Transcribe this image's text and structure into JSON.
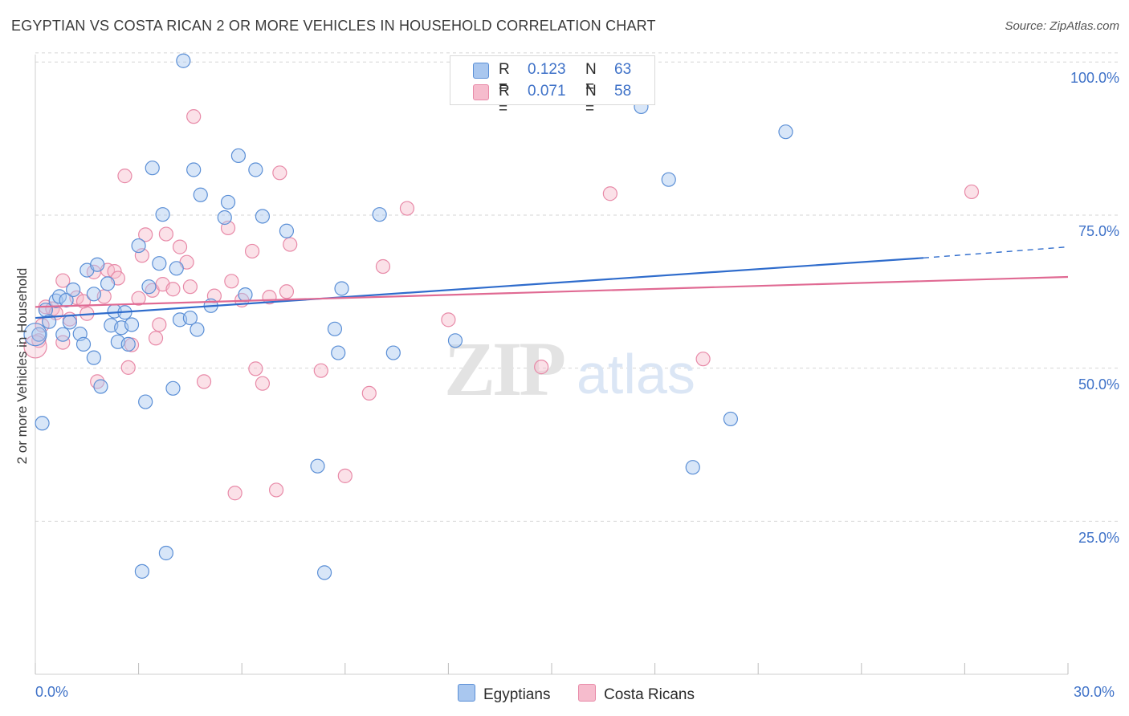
{
  "title": "EGYPTIAN VS COSTA RICAN 2 OR MORE VEHICLES IN HOUSEHOLD CORRELATION CHART",
  "source": "Source: ZipAtlas.com",
  "watermark": "ZIPatlas",
  "colors": {
    "egyptians_fill": "#a9c7ef",
    "egyptians_stroke": "#5b8fd6",
    "egyptians_line": "#2f6ccc",
    "costa_fill": "#f6bccd",
    "costa_stroke": "#e88aa8",
    "costa_line": "#e06a93",
    "tick_text": "#3f72c8",
    "grid": "#d6d6d6"
  },
  "legend_top": {
    "rows": [
      {
        "r_label": "R =",
        "r_value": "0.123",
        "n_label": "N =",
        "n_value": "63",
        "series": "egyptians"
      },
      {
        "r_label": "R =",
        "r_value": "0.071",
        "n_label": "N =",
        "n_value": "58",
        "series": "costa"
      }
    ]
  },
  "legend_bottom": [
    "Egyptians",
    "Costa Ricans"
  ],
  "chart_data": {
    "type": "scatter",
    "title": "EGYPTIAN VS COSTA RICAN 2 OR MORE VEHICLES IN HOUSEHOLD CORRELATION CHART",
    "xlabel": "",
    "ylabel": "2 or more Vehicles in Household",
    "xlim": [
      0,
      30
    ],
    "ylim": [
      0,
      102
    ],
    "x_tick_labels": [
      "0.0%",
      "30.0%"
    ],
    "y_ticks": [
      25,
      50,
      75,
      100
    ],
    "y_tick_labels": [
      "25.0%",
      "50.0%",
      "75.0%",
      "100.0%"
    ],
    "grid": "horizontal dashed",
    "legend": "top-center and bottom",
    "series": [
      {
        "name": "Egyptians",
        "r": 0.123,
        "n": 63,
        "trend": {
          "x": [
            0,
            25.8
          ],
          "y": [
            58.2,
            68.0
          ],
          "dashed_to": [
            30,
            69.8
          ]
        },
        "points": [
          [
            0.1,
            55.5
          ],
          [
            0.3,
            59.5
          ],
          [
            0.4,
            57.6
          ],
          [
            0.6,
            61.0
          ],
          [
            0.7,
            61.7
          ],
          [
            0.8,
            55.5
          ],
          [
            0.9,
            61.1
          ],
          [
            1.0,
            57.5
          ],
          [
            1.1,
            62.8
          ],
          [
            1.3,
            55.6
          ],
          [
            1.4,
            53.9
          ],
          [
            1.5,
            66.0
          ],
          [
            1.7,
            62.1
          ],
          [
            1.7,
            51.7
          ],
          [
            1.8,
            66.9
          ],
          [
            1.9,
            47.0
          ],
          [
            2.1,
            63.8
          ],
          [
            2.2,
            57.0
          ],
          [
            2.3,
            59.3
          ],
          [
            2.4,
            54.3
          ],
          [
            2.5,
            56.6
          ],
          [
            2.6,
            59.1
          ],
          [
            2.7,
            53.9
          ],
          [
            2.8,
            57.1
          ],
          [
            3.0,
            70.0
          ],
          [
            3.1,
            16.8
          ],
          [
            3.2,
            44.5
          ],
          [
            3.3,
            63.3
          ],
          [
            3.4,
            82.7
          ],
          [
            3.6,
            67.1
          ],
          [
            3.7,
            75.1
          ],
          [
            3.8,
            19.8
          ],
          [
            4.0,
            46.7
          ],
          [
            4.1,
            66.3
          ],
          [
            4.2,
            57.9
          ],
          [
            4.3,
            100.2
          ],
          [
            4.5,
            58.2
          ],
          [
            4.6,
            82.4
          ],
          [
            4.7,
            56.3
          ],
          [
            4.8,
            78.3
          ],
          [
            5.1,
            60.2
          ],
          [
            5.5,
            74.6
          ],
          [
            5.6,
            77.1
          ],
          [
            5.9,
            84.7
          ],
          [
            6.1,
            62.0
          ],
          [
            6.4,
            82.4
          ],
          [
            6.6,
            74.8
          ],
          [
            7.3,
            72.4
          ],
          [
            8.2,
            34.0
          ],
          [
            8.4,
            16.6
          ],
          [
            8.7,
            56.4
          ],
          [
            8.8,
            52.5
          ],
          [
            8.9,
            63.0
          ],
          [
            10.0,
            75.1
          ],
          [
            10.4,
            52.5
          ],
          [
            12.2,
            54.5
          ],
          [
            17.6,
            92.7
          ],
          [
            18.4,
            80.8
          ],
          [
            19.1,
            33.8
          ],
          [
            20.2,
            41.7
          ],
          [
            21.8,
            88.6
          ],
          [
            0.0,
            55.5
          ],
          [
            0.2,
            41.0
          ]
        ]
      },
      {
        "name": "Costa Ricans",
        "r": 0.071,
        "n": 58,
        "trend": {
          "x": [
            0,
            30
          ],
          "y": [
            60.0,
            64.9
          ]
        },
        "points": [
          [
            0.1,
            54.5
          ],
          [
            0.2,
            57.0
          ],
          [
            0.3,
            60.0
          ],
          [
            0.5,
            59.7
          ],
          [
            0.8,
            54.2
          ],
          [
            0.8,
            64.3
          ],
          [
            1.0,
            58.0
          ],
          [
            1.2,
            61.5
          ],
          [
            1.4,
            60.9
          ],
          [
            1.5,
            58.9
          ],
          [
            1.7,
            65.7
          ],
          [
            1.8,
            47.8
          ],
          [
            2.0,
            61.7
          ],
          [
            2.1,
            66.0
          ],
          [
            2.3,
            65.8
          ],
          [
            2.4,
            64.7
          ],
          [
            2.6,
            81.4
          ],
          [
            2.7,
            50.1
          ],
          [
            2.8,
            53.8
          ],
          [
            3.0,
            61.4
          ],
          [
            3.1,
            68.4
          ],
          [
            3.2,
            71.8
          ],
          [
            3.4,
            62.7
          ],
          [
            3.5,
            54.9
          ],
          [
            3.6,
            57.1
          ],
          [
            3.7,
            63.7
          ],
          [
            3.8,
            71.9
          ],
          [
            4.0,
            62.9
          ],
          [
            4.2,
            69.8
          ],
          [
            4.4,
            67.3
          ],
          [
            4.5,
            63.3
          ],
          [
            4.6,
            91.1
          ],
          [
            4.9,
            47.8
          ],
          [
            5.2,
            61.8
          ],
          [
            5.6,
            72.9
          ],
          [
            5.7,
            64.2
          ],
          [
            5.8,
            29.6
          ],
          [
            6.0,
            61.1
          ],
          [
            6.3,
            69.1
          ],
          [
            6.4,
            49.9
          ],
          [
            6.6,
            47.5
          ],
          [
            6.8,
            61.6
          ],
          [
            7.0,
            30.1
          ],
          [
            7.1,
            81.9
          ],
          [
            7.3,
            62.5
          ],
          [
            7.4,
            70.2
          ],
          [
            8.3,
            49.6
          ],
          [
            9.0,
            32.4
          ],
          [
            9.7,
            45.9
          ],
          [
            10.1,
            66.6
          ],
          [
            10.8,
            76.1
          ],
          [
            12.0,
            57.9
          ],
          [
            14.7,
            50.2
          ],
          [
            16.7,
            78.5
          ],
          [
            19.4,
            51.5
          ],
          [
            27.2,
            78.8
          ],
          [
            0.0,
            53.5
          ],
          [
            0.6,
            59.0
          ]
        ]
      }
    ]
  }
}
